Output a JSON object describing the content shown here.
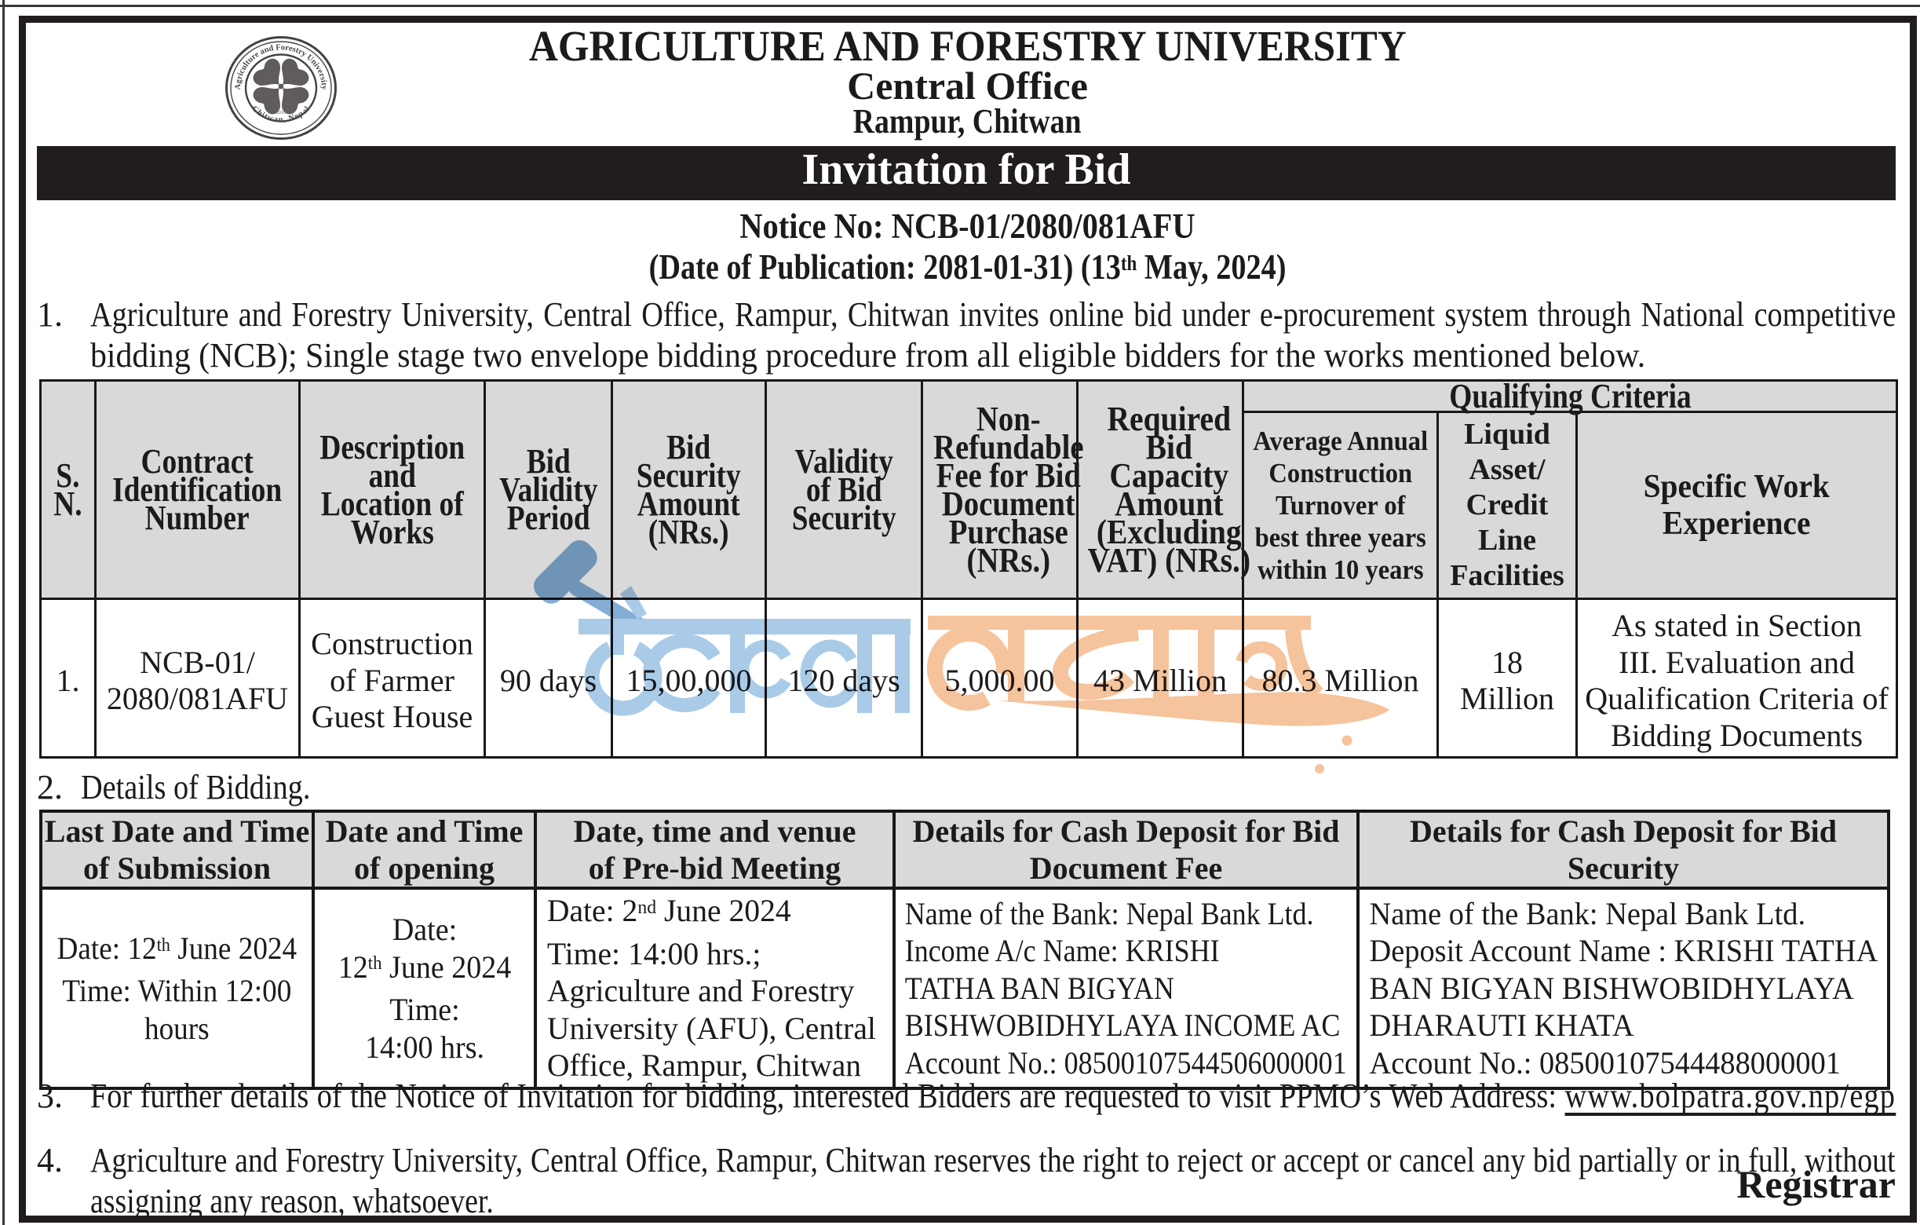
{
  "header": {
    "university": "AGRICULTURE AND FORESTRY UNIVERSITY",
    "office": "Central Office",
    "location": "Rampur, Chitwan",
    "banner": "Invitation for Bid",
    "notice_no": "Notice No: NCB-01/2080/081AFU",
    "publication_line": [
      [
        "(Date of Publication: 2081-01-31) (13",
        {
          "sup": "th"
        },
        " May, 2024)"
      ]
    ]
  },
  "logo": {
    "ring_text_top": "Agriculture and Forestry University",
    "ring_text_bottom": "Chitwan, Nepal",
    "year": "2010"
  },
  "items": {
    "item1": {
      "no": "1.",
      "line1": "Agriculture and Forestry University, Central Office, Rampur, Chitwan invites online bid under e-procurement system through National competitive",
      "line2": "bidding (NCB); Single stage two envelope bidding procedure from all eligible bidders for the works mentioned below."
    },
    "item2": {
      "no": "2.",
      "text": "Details of Bidding."
    },
    "item3": {
      "no": "3.",
      "line": [
        "For further details of the Notice of Invitation for bidding, interested Bidders are requested to visit PPMO’s Web Address: ",
        {
          "u": "www.bolpatra.gov.np/egp"
        }
      ]
    },
    "item4": {
      "no": "4.",
      "line1": "Agriculture and Forestry University, Central Office, Rampur, Chitwan reserves the right to reject or accept or cancel any bid partially or in full, without",
      "line2": "assigning any reason, whatsoever."
    }
  },
  "table1": {
    "qualifying_criteria": "Qualifying Criteria",
    "headers": {
      "sn": [
        [
          "S."
        ],
        [
          "N."
        ]
      ],
      "contract": [
        [
          "Contract"
        ],
        [
          "Identification"
        ],
        [
          "Number"
        ]
      ],
      "description": [
        [
          "Description"
        ],
        [
          "and"
        ],
        [
          "Location of"
        ],
        [
          "Works"
        ]
      ],
      "validity": [
        [
          "Bid"
        ],
        [
          "Validity"
        ],
        [
          "Period"
        ]
      ],
      "security_amount": [
        [
          "Bid"
        ],
        [
          "Security"
        ],
        [
          "Amount"
        ],
        [
          "(NRs.)"
        ]
      ],
      "security_validity": [
        [
          "Validity"
        ],
        [
          "of Bid"
        ],
        [
          "Security"
        ]
      ],
      "fee": [
        [
          "Non-"
        ],
        [
          "Refundable"
        ],
        [
          "Fee for Bid"
        ],
        [
          "Document"
        ],
        [
          "Purchase"
        ],
        [
          "(NRs.)"
        ]
      ],
      "capacity": [
        [
          "Required"
        ],
        [
          "Bid"
        ],
        [
          "Capacity"
        ],
        [
          "Amount"
        ],
        [
          "(Excluding"
        ],
        [
          "VAT) (NRs.)"
        ]
      ],
      "turnover": [
        [
          "Average Annual"
        ],
        [
          "Construction"
        ],
        [
          "Turnover of"
        ],
        [
          "best three years"
        ],
        [
          "within 10 years"
        ]
      ],
      "liquid": [
        [
          "Liquid"
        ],
        [
          "Asset/"
        ],
        [
          "Credit"
        ],
        [
          "Line"
        ],
        [
          "Facilities"
        ]
      ],
      "experience": [
        [
          "Specific Work"
        ],
        [
          "Experience"
        ]
      ]
    },
    "row": {
      "sn": "1.",
      "contract": [
        [
          "NCB-01/"
        ],
        [
          "2080/081AFU"
        ]
      ],
      "description": [
        [
          "Construction"
        ],
        [
          "of Farmer"
        ],
        [
          "Guest House"
        ]
      ],
      "validity": "90 days",
      "security_amount": "15,00,000",
      "security_validity": "120 days",
      "fee": "5,000.00",
      "capacity": "43 Million",
      "turnover": "80.3 Million",
      "liquid": [
        [
          "18"
        ],
        [
          "Million"
        ]
      ],
      "experience": [
        [
          "As stated in Section"
        ],
        [
          "III. Evaluation and"
        ],
        [
          "Qualification Criteria of"
        ],
        [
          "Bidding Documents"
        ]
      ]
    }
  },
  "table2": {
    "headers": {
      "submission": [
        [
          "Last Date and Time"
        ],
        [
          "of Submission"
        ]
      ],
      "opening": [
        [
          "Date and Time"
        ],
        [
          "of opening"
        ]
      ],
      "prebid": [
        [
          "Date, time and venue"
        ],
        [
          "of Pre-bid Meeting"
        ]
      ],
      "doc_fee": [
        [
          "Details for Cash Deposit for Bid"
        ],
        [
          "Document Fee"
        ]
      ],
      "bid_security": [
        [
          "Details for Cash Deposit for Bid"
        ],
        [
          "Security"
        ]
      ]
    },
    "row": {
      "submission": [
        [
          "Date: 12",
          {
            "sup": "th"
          },
          " June 2024"
        ],
        [
          "Time: Within 12:00"
        ],
        [
          "hours"
        ]
      ],
      "opening": [
        [
          "Date:"
        ],
        [
          "12",
          {
            "sup": "th"
          },
          " June 2024"
        ],
        [
          "Time:"
        ],
        [
          "14:00 hrs."
        ]
      ],
      "prebid": [
        [
          "Date: 2",
          {
            "sup": "nd"
          },
          "  June 2024"
        ],
        [
          "Time: 14:00 hrs.;"
        ],
        [
          "Agriculture and Forestry"
        ],
        [
          "University (AFU), Central"
        ],
        [
          "Office, Rampur, Chitwan"
        ]
      ],
      "doc_fee": [
        [
          "Name of the Bank: Nepal Bank Ltd."
        ],
        [
          "Income A/c Name: KRISHI"
        ],
        [
          "TATHA BAN BIGYAN"
        ],
        [
          "BISHWOBIDHYLAYA INCOME AC"
        ],
        [
          "Account No.: 08500107544506000001"
        ]
      ],
      "bid_security": [
        [
          "Name of the Bank: Nepal Bank Ltd."
        ],
        [
          "Deposit Account Name : KRISHI TATHA"
        ],
        [
          "BAN BIGYAN BISHWOBIDHYLAYA"
        ],
        [
          "DHARAUTI KHATA"
        ],
        [
          "Account No.: 08500107544488000001"
        ]
      ]
    }
  },
  "signature": "Registrar",
  "colors": {
    "watermark_blue": "#a7c9e6",
    "watermark_blue_dark": "#76a4cf",
    "watermark_orange": "#f5c49d",
    "header_gray": "#d9d9d9",
    "ink": "#1d1a1b"
  }
}
